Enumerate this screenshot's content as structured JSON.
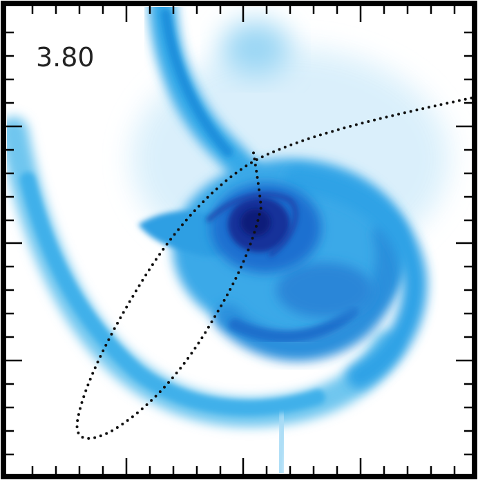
{
  "label": "3.80"
}
